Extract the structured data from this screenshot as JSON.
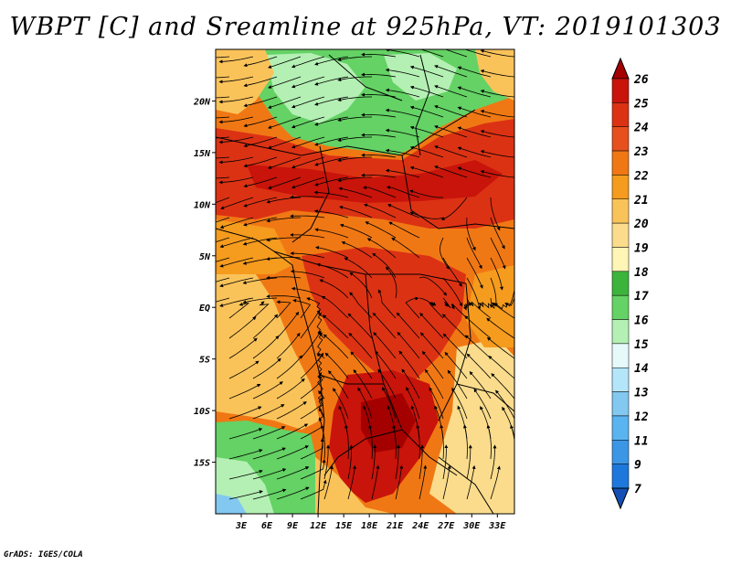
{
  "title": "WBPT [C] and Sreamline at 925hPa, VT: 2019101303",
  "credit": "GrADS: IGES/COLA",
  "map": {
    "lat_labels": [
      "20N",
      "15N",
      "10N",
      "5N",
      "EQ",
      "5S",
      "10S",
      "15S"
    ],
    "lat_values": [
      20,
      15,
      10,
      5,
      0,
      -5,
      -10,
      -15
    ],
    "lon_labels": [
      "3E",
      "6E",
      "9E",
      "12E",
      "15E",
      "18E",
      "21E",
      "24E",
      "27E",
      "30E",
      "33E"
    ],
    "lon_values": [
      3,
      6,
      9,
      12,
      15,
      18,
      21,
      24,
      27,
      30,
      33
    ],
    "lon_range": [
      0,
      35
    ],
    "lat_range": [
      -20,
      25
    ]
  },
  "colorbar": {
    "labels": [
      "26",
      "25",
      "24",
      "23",
      "22",
      "21",
      "20",
      "19",
      "18",
      "17",
      "16",
      "15",
      "14",
      "13",
      "12",
      "11",
      "9",
      "7"
    ],
    "colors": [
      "#a50000",
      "#c8140a",
      "#dc3214",
      "#e6501e",
      "#f07814",
      "#f59b1e",
      "#fac35a",
      "#fadc8c",
      "#fff5b4",
      "#3cb43c",
      "#64d264",
      "#b4f0b4",
      "#e6fafa",
      "#b4e6fa",
      "#82c8f0",
      "#5ab4f0",
      "#3c96e6",
      "#1e78dc",
      "#1450b4"
    ]
  }
}
